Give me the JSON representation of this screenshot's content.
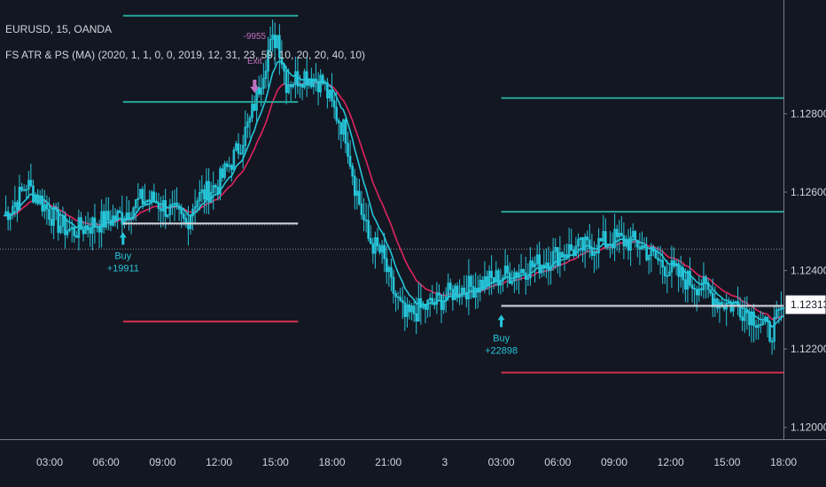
{
  "header": {
    "symbol_line": "EURUSD, 15, OANDA",
    "indicator_line": "FS ATR & PS (MA) (2020, 1, 1, 0, 0, 2019, 12, 31, 23, 59, 10, 20, 20, 40, 10)"
  },
  "colors": {
    "background": "#131722",
    "candle": "#26c6da",
    "fast_ma": "#26c6da",
    "slow_ma": "#e0245e",
    "target_line": "#26a69a",
    "stop_line": "#d32f4f",
    "buy_signal": "#26c6da",
    "exit_signal": "#c070c0",
    "price_badge_bg": "#ffffff",
    "axis_text": "#d1d4dc"
  },
  "chart_data": {
    "type": "candlestick",
    "instrument": "EURUSD",
    "timeframe": "15",
    "ylim": [
      1.1197,
      1.1309
    ],
    "price_ticks": [
      {
        "label": "1.12800",
        "value": 1.128
      },
      {
        "label": "1.12600",
        "value": 1.126
      },
      {
        "label": "1.12400",
        "value": 1.124
      },
      {
        "label": "1.12200",
        "value": 1.122
      },
      {
        "label": "1.12000",
        "value": 1.12
      }
    ],
    "time_ticks": [
      "03:00",
      "06:00",
      "09:00",
      "12:00",
      "15:00",
      "18:00",
      "21:00",
      "3",
      "03:00",
      "06:00",
      "09:00",
      "12:00",
      "15:00",
      "18:00"
    ],
    "last_price": "1.12313",
    "last_price_value": 1.12313,
    "reference_price": 1.12455,
    "close_path": [
      [
        0,
        1.1254
      ],
      [
        6,
        1.1258
      ],
      [
        10,
        1.1262
      ],
      [
        16,
        1.1258
      ],
      [
        24,
        1.1252
      ],
      [
        30,
        1.125
      ],
      [
        40,
        1.1252
      ],
      [
        52,
        1.1254
      ],
      [
        60,
        1.1258
      ],
      [
        66,
        1.1258
      ],
      [
        76,
        1.1254
      ],
      [
        80,
        1.1252
      ],
      [
        84,
        1.1258
      ],
      [
        94,
        1.1262
      ],
      [
        102,
        1.127
      ],
      [
        108,
        1.1278
      ],
      [
        116,
        1.1296
      ],
      [
        120,
        1.13
      ],
      [
        124,
        1.1288
      ],
      [
        132,
        1.129
      ],
      [
        140,
        1.1288
      ],
      [
        144,
        1.1282
      ],
      [
        150,
        1.1275
      ],
      [
        154,
        1.1262
      ],
      [
        160,
        1.1248
      ],
      [
        166,
        1.1244
      ],
      [
        170,
        1.1236
      ],
      [
        176,
        1.1228
      ],
      [
        182,
        1.123
      ],
      [
        190,
        1.1232
      ],
      [
        198,
        1.1235
      ],
      [
        206,
        1.1236
      ],
      [
        216,
        1.1238
      ],
      [
        226,
        1.124
      ],
      [
        236,
        1.1242
      ],
      [
        246,
        1.1245
      ],
      [
        256,
        1.1246
      ],
      [
        268,
        1.1248
      ],
      [
        278,
        1.1247
      ],
      [
        288,
        1.1242
      ],
      [
        298,
        1.1238
      ],
      [
        306,
        1.1236
      ],
      [
        314,
        1.1232
      ],
      [
        322,
        1.1231
      ],
      [
        330,
        1.1228
      ],
      [
        336,
        1.1224
      ],
      [
        342,
        1.123
      ]
    ],
    "trades": [
      {
        "side": "buy",
        "label": "Buy",
        "value_text": "+19911",
        "entry_price": 1.1252,
        "start_time": "06:00",
        "end_time": "15:45",
        "target_1": 1.1305,
        "target_2": 1.1283,
        "stop": 1.1227,
        "exit_label": "Exit",
        "exit_value_text": "-9955"
      },
      {
        "side": "buy",
        "label": "Buy",
        "value_text": "+22898",
        "entry_price": 1.1231,
        "start_time": "03:00",
        "end_time": "18:00",
        "target_1": 1.1284,
        "target_2": 1.1255,
        "stop": 1.1214
      }
    ]
  }
}
